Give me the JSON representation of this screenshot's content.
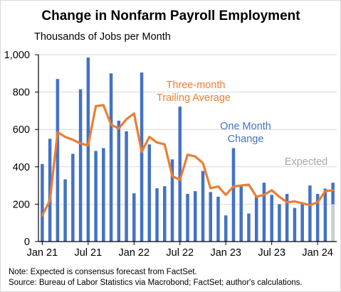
{
  "chart_data": {
    "type": "bar",
    "title": "Change in Nonfarm Payroll Employment",
    "ylabel": "Thousands of Jobs per Month",
    "xlabel": "",
    "ylim": [
      0,
      1000
    ],
    "yticks": [
      0,
      200,
      400,
      600,
      800,
      1000
    ],
    "ytick_labels": [
      "0",
      "200",
      "400",
      "600",
      "800",
      "1,000"
    ],
    "xtick_labels": [
      {
        "label": "Jan 21",
        "index": 0
      },
      {
        "label": "Jul 21",
        "index": 6
      },
      {
        "label": "Jan 22",
        "index": 12
      },
      {
        "label": "Jul 22",
        "index": 18
      },
      {
        "label": "Jan 23",
        "index": 24
      },
      {
        "label": "Jul 23",
        "index": 30
      },
      {
        "label": "Jan 24",
        "index": 36
      }
    ],
    "grid": true,
    "categories": [
      "Jan 21",
      "Feb 21",
      "Mar 21",
      "Apr 21",
      "May 21",
      "Jun 21",
      "Jul 21",
      "Aug 21",
      "Sep 21",
      "Oct 21",
      "Nov 21",
      "Dec 21",
      "Jan 22",
      "Feb 22",
      "Mar 22",
      "Apr 22",
      "May 22",
      "Jun 22",
      "Jul 22",
      "Aug 22",
      "Sep 22",
      "Oct 22",
      "Nov 22",
      "Dec 22",
      "Jan 23",
      "Feb 23",
      "Mar 23",
      "Apr 23",
      "May 23",
      "Jun 23",
      "Jul 23",
      "Aug 23",
      "Sep 23",
      "Oct 23",
      "Nov 23",
      "Dec 23",
      "Jan 24",
      "Feb 24",
      "Mar 24"
    ],
    "series": [
      {
        "name": "One Month Change",
        "kind": "bar",
        "color": "#4472c4",
        "values": [
          415,
          550,
          870,
          333,
          470,
          815,
          985,
          485,
          500,
          900,
          647,
          590,
          258,
          905,
          520,
          285,
          296,
          440,
          722,
          255,
          270,
          378,
          265,
          240,
          140,
          500,
          300,
          150,
          240,
          315,
          250,
          200,
          255,
          180,
          205,
          300,
          255,
          283,
          315
        ]
      },
      {
        "name": "Three-month Trailing Average",
        "kind": "line",
        "color": "#ed7d31",
        "values": [
          140,
          220,
          585,
          560,
          545,
          525,
          515,
          725,
          730,
          625,
          605,
          655,
          685,
          480,
          560,
          530,
          520,
          350,
          330,
          465,
          455,
          420,
          285,
          295,
          250,
          295,
          300,
          305,
          240,
          250,
          275,
          240,
          210,
          215,
          205,
          195,
          210,
          270,
          275
        ]
      },
      {
        "name": "Expected",
        "kind": "bar",
        "color": "#d0d0d0",
        "values": [
          null,
          null,
          null,
          null,
          null,
          null,
          null,
          null,
          null,
          null,
          null,
          null,
          null,
          null,
          null,
          null,
          null,
          null,
          null,
          null,
          null,
          null,
          null,
          null,
          null,
          null,
          null,
          null,
          null,
          null,
          null,
          null,
          null,
          null,
          null,
          null,
          null,
          null,
          200
        ]
      }
    ],
    "annotations": {
      "avg_label": [
        "Three-month",
        "Trailing Average"
      ],
      "bar_label": [
        "One Month",
        "Change"
      ],
      "expected_label": "Expected"
    },
    "notes": [
      "Note: Expected is consensus forecast from FactSet.",
      "Source: Bureau of Labor Statistics via Macrobond; FactSet; author's calculations."
    ]
  },
  "colors": {
    "bar": "#4472c4",
    "line": "#ed7d31",
    "expected": "#d0d0d0",
    "grid": "#d9d9d9",
    "bar_label": "#4472c4",
    "avg_label": "#ed7d31",
    "expected_label": "#a6a6a6"
  }
}
